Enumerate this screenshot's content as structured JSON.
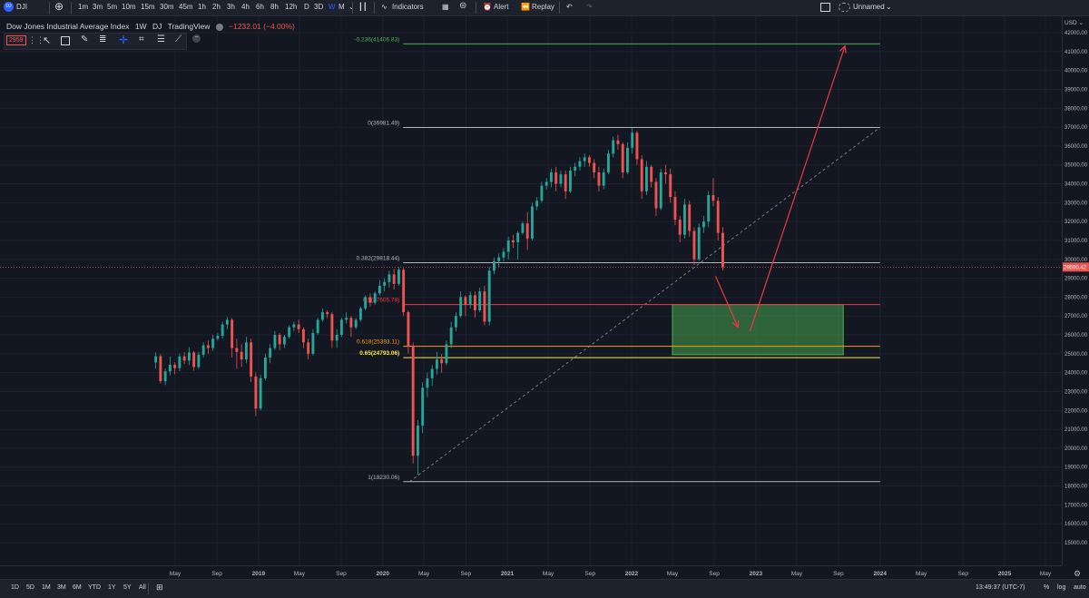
{
  "topbar": {
    "symbol": "DJI",
    "intervals": [
      "1m",
      "3m",
      "5m",
      "10m",
      "15m",
      "30m",
      "45m",
      "1h",
      "2h",
      "3h",
      "4h",
      "6h",
      "8h",
      "12h",
      "D",
      "3D",
      "W",
      "M"
    ],
    "active_interval": "W",
    "indicators_label": "Indicators",
    "alert_label": "Alert",
    "replay_label": "Replay",
    "layout_name": "Unnamed"
  },
  "legend": {
    "title": "Dow Jones Industrial Average Index",
    "interval": "1W",
    "exchange": "DJ",
    "source": "TradingView",
    "change": "−1232.01 (−4.00%)",
    "price_box": "2959"
  },
  "price_axis": {
    "currency": "USD",
    "ticks": [
      "42000.00",
      "41000.00",
      "40000.00",
      "39000.00",
      "38000.00",
      "37000.00",
      "36000.00",
      "35000.00",
      "34000.00",
      "33000.00",
      "32000.00",
      "31000.00",
      "30000.00",
      "29000.00",
      "28000.00",
      "27000.00",
      "26000.00",
      "25000.00",
      "24000.00",
      "23000.00",
      "22000.00",
      "21000.00",
      "20000.00",
      "19000.00",
      "18000.00",
      "17000.00",
      "16000.00",
      "15000.00"
    ],
    "last_price": "29590.42"
  },
  "time_axis": {
    "labels": [
      "May",
      "Sep",
      "2019",
      "May",
      "Sep",
      "2020",
      "May",
      "Sep",
      "2021",
      "May",
      "Sep",
      "2022",
      "May",
      "Sep",
      "2023",
      "May",
      "Sep",
      "2024",
      "May",
      "Sep",
      "2025",
      "May"
    ]
  },
  "fib_labels": {
    "l_neg0236": "-0.236(41406.83)",
    "l_0": "0(36981.49)",
    "l_0382": "0.382(29818.44)",
    "l_05": "0.5(27605.78)",
    "l_0618": "0.618(25393.11)",
    "l_065": "0.65(24793.06)",
    "l_1": "1(18230.06)"
  },
  "bottombar": {
    "ranges": [
      "1D",
      "5D",
      "1M",
      "3M",
      "6M",
      "YTD",
      "1Y",
      "5Y",
      "All"
    ],
    "clock": "13:49:37 (UTC-7)",
    "pct": "%",
    "log": "log",
    "auto": "auto"
  },
  "chart_data": {
    "type": "candlestick",
    "title": "Dow Jones Industrial Average Index",
    "interval": "1W",
    "ylabel": "USD",
    "ylim": [
      14500,
      42700
    ],
    "candles": [
      [
        "2018-03-05",
        24540,
        25080,
        24210,
        24870
      ],
      [
        "2018-03-19",
        24870,
        24980,
        23430,
        23550
      ],
      [
        "2018-04-02",
        23550,
        24220,
        23340,
        24070
      ],
      [
        "2018-04-16",
        24070,
        24860,
        23850,
        24420
      ],
      [
        "2018-04-30",
        24420,
        24550,
        23910,
        24240
      ],
      [
        "2018-05-14",
        24240,
        25010,
        24080,
        24860
      ],
      [
        "2018-05-28",
        24860,
        25090,
        24460,
        24640
      ],
      [
        "2018-06-11",
        24640,
        25350,
        24400,
        25070
      ],
      [
        "2018-06-25",
        25070,
        25140,
        24100,
        24300
      ],
      [
        "2018-07-09",
        24300,
        25100,
        24200,
        24950
      ],
      [
        "2018-07-23",
        24950,
        25600,
        24800,
        25450
      ],
      [
        "2018-08-06",
        25450,
        25700,
        25000,
        25300
      ],
      [
        "2018-08-20",
        25300,
        26000,
        25150,
        25800
      ],
      [
        "2018-09-03",
        25800,
        26100,
        25700,
        25950
      ],
      [
        "2018-09-17",
        25950,
        26700,
        25800,
        26550
      ],
      [
        "2018-10-01",
        26550,
        26950,
        26300,
        26800
      ],
      [
        "2018-10-15",
        26800,
        26900,
        24800,
        25300
      ],
      [
        "2018-10-29",
        25300,
        25800,
        24200,
        25100
      ],
      [
        "2018-11-12",
        25100,
        25500,
        24300,
        24700
      ],
      [
        "2018-11-26",
        24700,
        25900,
        24500,
        25600
      ],
      [
        "2018-12-10",
        25600,
        25800,
        23500,
        23800
      ],
      [
        "2018-12-24",
        23800,
        24000,
        21700,
        22100
      ],
      [
        "2019-01-07",
        22100,
        23900,
        22000,
        23700
      ],
      [
        "2019-01-21",
        23700,
        25000,
        23600,
        24800
      ],
      [
        "2019-02-04",
        24800,
        25500,
        24500,
        25300
      ],
      [
        "2019-02-18",
        25300,
        26200,
        25200,
        26000
      ],
      [
        "2019-03-04",
        26000,
        26100,
        25200,
        25500
      ],
      [
        "2019-03-18",
        25500,
        26000,
        25300,
        25900
      ],
      [
        "2019-04-01",
        25900,
        26500,
        25800,
        26400
      ],
      [
        "2019-04-15",
        26400,
        26700,
        26200,
        26550
      ],
      [
        "2019-04-29",
        26550,
        26800,
        26100,
        26300
      ],
      [
        "2019-05-13",
        26300,
        26400,
        25300,
        25600
      ],
      [
        "2019-05-27",
        25600,
        25800,
        24700,
        25000
      ],
      [
        "2019-06-10",
        25000,
        26300,
        24900,
        26100
      ],
      [
        "2019-06-24",
        26100,
        26900,
        26000,
        26800
      ],
      [
        "2019-07-08",
        26800,
        27400,
        26700,
        27200
      ],
      [
        "2019-07-22",
        27200,
        27300,
        26900,
        27100
      ],
      [
        "2019-08-05",
        27100,
        27200,
        25300,
        25700
      ],
      [
        "2019-08-19",
        25700,
        26300,
        25300,
        26000
      ],
      [
        "2019-09-02",
        26000,
        26900,
        25900,
        26800
      ],
      [
        "2019-09-16",
        26800,
        27200,
        26600,
        26900
      ],
      [
        "2019-09-30",
        26900,
        27000,
        25900,
        26400
      ],
      [
        "2019-10-14",
        26400,
        26900,
        26300,
        26800
      ],
      [
        "2019-10-28",
        26800,
        27500,
        26700,
        27400
      ],
      [
        "2019-11-11",
        27400,
        28100,
        27300,
        28000
      ],
      [
        "2019-11-25",
        28000,
        28200,
        27500,
        27700
      ],
      [
        "2019-12-09",
        27700,
        28300,
        27600,
        28200
      ],
      [
        "2019-12-23",
        28200,
        28900,
        28100,
        28600
      ],
      [
        "2020-01-06",
        28600,
        29000,
        28300,
        28800
      ],
      [
        "2020-01-20",
        28800,
        29400,
        28500,
        29200
      ],
      [
        "2020-02-03",
        29200,
        29500,
        28400,
        28700
      ],
      [
        "2020-02-17",
        28700,
        29600,
        28600,
        29450
      ],
      [
        "2020-03-02",
        29450,
        29550,
        27000,
        27200
      ],
      [
        "2020-03-16",
        27200,
        27300,
        25000,
        25400
      ],
      [
        "2020-03-30",
        25400,
        25600,
        19200,
        19600
      ],
      [
        "2020-04-13",
        19600,
        21500,
        18600,
        21200
      ],
      [
        "2020-04-27",
        21200,
        23500,
        20800,
        23200
      ],
      [
        "2020-05-11",
        23200,
        24000,
        22700,
        23700
      ],
      [
        "2020-05-25",
        23700,
        24400,
        23300,
        24200
      ],
      [
        "2020-06-08",
        24200,
        25100,
        23900,
        24700
      ],
      [
        "2020-06-22",
        24700,
        25000,
        24000,
        24500
      ],
      [
        "2020-07-06",
        24500,
        25700,
        24400,
        25500
      ],
      [
        "2020-07-20",
        25500,
        26700,
        25300,
        26400
      ],
      [
        "2020-08-03",
        26400,
        27200,
        26200,
        27000
      ],
      [
        "2020-08-17",
        27000,
        28300,
        26900,
        28000
      ],
      [
        "2020-08-31",
        28000,
        28100,
        27000,
        27600
      ],
      [
        "2020-09-14",
        27600,
        28300,
        27400,
        28100
      ],
      [
        "2020-09-28",
        28100,
        28300,
        26900,
        27300
      ],
      [
        "2020-10-12",
        27300,
        28500,
        27200,
        28300
      ],
      [
        "2020-10-26",
        28300,
        28600,
        26500,
        26700
      ],
      [
        "2020-11-09",
        26700,
        29600,
        26500,
        29400
      ],
      [
        "2020-11-23",
        29400,
        30100,
        29200,
        29900
      ],
      [
        "2020-12-07",
        29900,
        30300,
        29600,
        30100
      ],
      [
        "2020-12-21",
        30100,
        30600,
        29900,
        30400
      ],
      [
        "2021-01-04",
        30400,
        31200,
        30000,
        31000
      ],
      [
        "2021-01-18",
        31000,
        31300,
        30600,
        30900
      ],
      [
        "2021-02-01",
        30900,
        31500,
        30000,
        31400
      ],
      [
        "2021-02-15",
        31400,
        32000,
        31300,
        31900
      ],
      [
        "2021-03-01",
        31900,
        32500,
        30500,
        31100
      ],
      [
        "2021-03-15",
        31100,
        33000,
        31000,
        32800
      ],
      [
        "2021-03-29",
        32800,
        33300,
        32600,
        33100
      ],
      [
        "2021-04-12",
        33100,
        34100,
        33000,
        33900
      ],
      [
        "2021-04-26",
        33900,
        34300,
        33700,
        34100
      ],
      [
        "2021-05-10",
        34100,
        34800,
        33800,
        34600
      ],
      [
        "2021-05-24",
        34600,
        34900,
        33600,
        34000
      ],
      [
        "2021-06-07",
        34000,
        34700,
        33800,
        34500
      ],
      [
        "2021-06-21",
        34500,
        34700,
        33200,
        33600
      ],
      [
        "2021-07-05",
        33600,
        34900,
        33500,
        34700
      ],
      [
        "2021-07-19",
        34700,
        35100,
        34400,
        34900
      ],
      [
        "2021-08-02",
        34900,
        35400,
        34700,
        35200
      ],
      [
        "2021-08-16",
        35200,
        35600,
        34900,
        35400
      ],
      [
        "2021-08-30",
        35400,
        35500,
        34900,
        35100
      ],
      [
        "2021-09-13",
        35100,
        35300,
        34300,
        34600
      ],
      [
        "2021-09-27",
        34600,
        34900,
        33600,
        33900
      ],
      [
        "2021-10-11",
        33900,
        34800,
        33700,
        34600
      ],
      [
        "2021-10-25",
        34600,
        35800,
        34500,
        35600
      ],
      [
        "2021-11-08",
        35600,
        36500,
        35400,
        36300
      ],
      [
        "2021-11-22",
        36300,
        36600,
        35800,
        36100
      ],
      [
        "2021-12-06",
        36100,
        36200,
        34300,
        34600
      ],
      [
        "2021-12-20",
        34600,
        36200,
        34500,
        35900
      ],
      [
        "2022-01-03",
        35900,
        36950,
        35600,
        36700
      ],
      [
        "2022-01-17",
        36700,
        36800,
        35000,
        35300
      ],
      [
        "2022-01-31",
        35300,
        35500,
        33200,
        33600
      ],
      [
        "2022-02-14",
        33600,
        35200,
        33400,
        34900
      ],
      [
        "2022-02-28",
        34900,
        35000,
        33800,
        34100
      ],
      [
        "2022-03-14",
        34100,
        34300,
        32300,
        32700
      ],
      [
        "2022-03-28",
        32700,
        34800,
        32600,
        34600
      ],
      [
        "2022-04-11",
        34600,
        35000,
        34000,
        34500
      ],
      [
        "2022-04-25",
        34500,
        34800,
        33000,
        33300
      ],
      [
        "2022-05-09",
        33300,
        33600,
        31800,
        32100
      ],
      [
        "2022-05-23",
        32100,
        32300,
        30900,
        31300
      ],
      [
        "2022-06-06",
        31300,
        33200,
        31100,
        32900
      ],
      [
        "2022-06-20",
        32900,
        33100,
        31200,
        31500
      ],
      [
        "2022-07-04",
        31500,
        31700,
        29700,
        30000
      ],
      [
        "2022-07-18",
        30000,
        31900,
        29900,
        31700
      ],
      [
        "2022-08-01",
        31700,
        32300,
        31400,
        32000
      ],
      [
        "2022-08-15",
        32000,
        33600,
        31700,
        33400
      ],
      [
        "2022-08-29",
        33400,
        34300,
        32800,
        33100
      ],
      [
        "2022-09-12",
        33100,
        33300,
        31000,
        31400
      ],
      [
        "2022-09-26",
        31400,
        31700,
        29400,
        29590
      ]
    ],
    "levels": [
      {
        "ratio": "-0.236",
        "value": 41406.83,
        "color": "#4caf50"
      },
      {
        "ratio": "0",
        "value": 36981.49,
        "color": "#b2b5be"
      },
      {
        "ratio": "0.382",
        "value": 29818.44,
        "color": "#b2b5be"
      },
      {
        "ratio": "0.5",
        "value": 27605.78,
        "color": "#f23645"
      },
      {
        "ratio": "0.618",
        "value": 25393.11,
        "color": "#ff9800"
      },
      {
        "ratio": "0.65",
        "value": 24793.06,
        "color": "#ffeb3b"
      },
      {
        "ratio": "1",
        "value": 18230.06,
        "color": "#b2b5be"
      }
    ],
    "target_zone": {
      "from": "2022-05-01",
      "to": "2023-09-15",
      "top": 27605,
      "bottom": 24950,
      "color": "#4caf50"
    },
    "trendline": {
      "from": [
        "2020-03-20",
        18230
      ],
      "to": [
        "2024-01-01",
        36981
      ]
    },
    "arrows": [
      {
        "from": [
          "2022-09-05",
          29100
        ],
        "to": [
          "2022-11-10",
          26400
        ]
      },
      {
        "from": [
          "2022-12-15",
          26200
        ],
        "to": [
          "2023-09-20",
          41300
        ]
      }
    ],
    "colors": {
      "up": "#26a69a",
      "down": "#ef5350",
      "bg": "#131722"
    }
  }
}
